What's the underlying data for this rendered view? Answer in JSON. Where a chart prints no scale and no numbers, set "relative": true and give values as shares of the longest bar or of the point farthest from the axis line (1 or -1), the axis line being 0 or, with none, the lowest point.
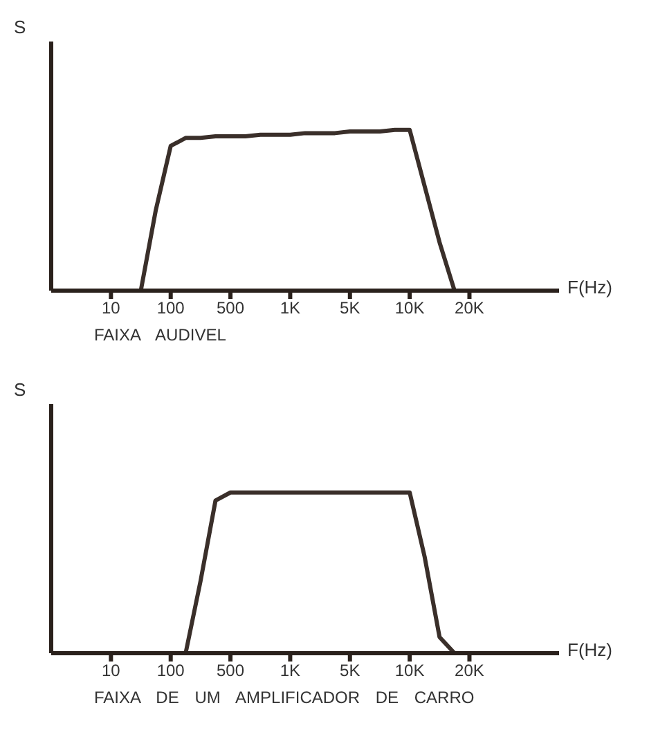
{
  "chart_data": [
    {
      "type": "line",
      "relative": true,
      "ylabel": "S",
      "xlabel": "F(Hz)",
      "annotations": [
        "FAIXA AUDIVEL"
      ],
      "grid": false,
      "marker": "none",
      "categories": [
        null,
        null,
        null,
        null,
        "10",
        null,
        null,
        null,
        "100",
        null,
        null,
        null,
        "500",
        null,
        null,
        null,
        "1K",
        null,
        null,
        null,
        "5K",
        null,
        null,
        null,
        "10K",
        null,
        null,
        null,
        "20K",
        null,
        null,
        null,
        null,
        null,
        null
      ],
      "series": [
        {
          "color": "#3a2f2a",
          "values": [
            null,
            null,
            null,
            null,
            null,
            null,
            0,
            0.5,
            0.9,
            0.95,
            0.95,
            0.96,
            0.96,
            0.96,
            0.97,
            0.97,
            0.97,
            0.98,
            0.98,
            0.98,
            0.99,
            0.99,
            0.99,
            1,
            1,
            0.65,
            0.3,
            0,
            null,
            null,
            null,
            null,
            null,
            null,
            null
          ]
        }
      ]
    },
    {
      "type": "line",
      "relative": true,
      "ylabel": "S",
      "xlabel": "F(Hz)",
      "annotations": [
        "FAIXA DE UM AMPLIFICADOR DE CARRO"
      ],
      "grid": false,
      "marker": "none",
      "categories": [
        null,
        null,
        null,
        null,
        "10",
        null,
        null,
        null,
        "100",
        null,
        null,
        null,
        "500",
        null,
        null,
        null,
        "1K",
        null,
        null,
        null,
        "5K",
        null,
        null,
        null,
        "10K",
        null,
        null,
        null,
        "20K",
        null,
        null,
        null,
        null,
        null,
        null
      ],
      "series": [
        {
          "color": "#3a2f2a",
          "values": [
            null,
            null,
            null,
            null,
            null,
            null,
            null,
            null,
            null,
            0,
            0.45,
            0.95,
            1,
            1,
            1,
            1,
            1,
            1,
            1,
            1,
            1,
            1,
            1,
            1,
            1,
            0.6,
            0.1,
            0,
            null,
            null,
            null,
            null,
            null,
            null,
            null
          ]
        }
      ]
    }
  ]
}
